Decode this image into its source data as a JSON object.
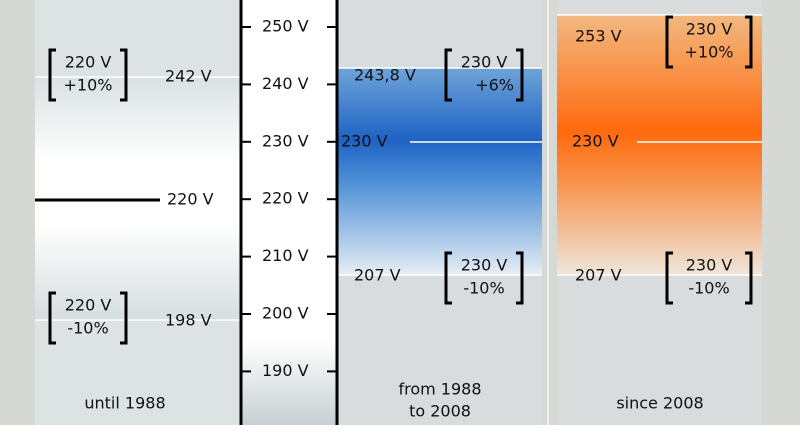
{
  "scale": {
    "ticks": [
      "250 V",
      "240 V",
      "230 V",
      "220 V",
      "210 V",
      "200 V",
      "190 V"
    ]
  },
  "panels": [
    {
      "label": [
        "until 1988"
      ],
      "upper": {
        "value": "242 V",
        "note": [
          "220 V",
          "+10%"
        ]
      },
      "nominal": "220 V",
      "lower": {
        "value": "198 V",
        "note": [
          "220 V",
          "-10%"
        ]
      }
    },
    {
      "label": [
        "from 1988",
        "to 2008"
      ],
      "upper": {
        "value": "243,8 V",
        "note": [
          "230 V",
          "+6%"
        ]
      },
      "nominal": "230 V",
      "lower": {
        "value": "207 V",
        "note": [
          "230 V",
          "-10%"
        ]
      }
    },
    {
      "label": [
        "since 2008"
      ],
      "upper": {
        "value": "253 V",
        "note": [
          "230 V",
          "+10%"
        ]
      },
      "nominal": "230 V",
      "lower": {
        "value": "207 V",
        "note": [
          "230 V",
          "-10%"
        ]
      }
    }
  ]
}
